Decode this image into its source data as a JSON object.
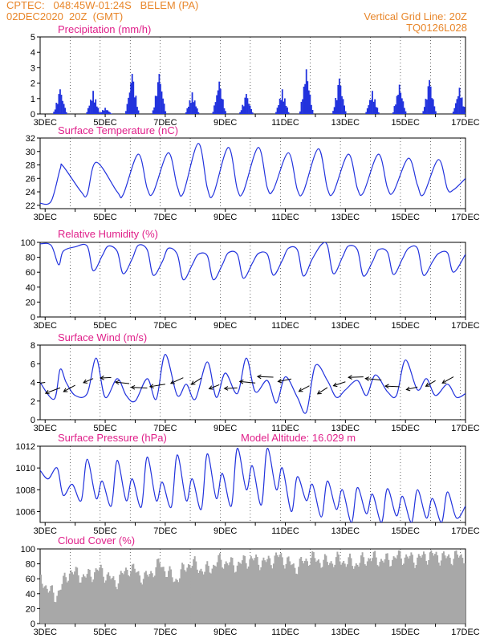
{
  "header": {
    "line1": "CPTEC:   048:45W-01:24S   BELEM (PA)",
    "line2": "02DEC2020  20Z  (GMT)",
    "right1": "Vertical Grid Line: 20Z",
    "right2": "TQ0126L028"
  },
  "colors": {
    "series": "#2233dd",
    "cloud": "#a8a8a8",
    "title": "#e0208a",
    "header": "#e8862a"
  },
  "chart_data": [
    {
      "type": "bar",
      "title": "Precipitation (mm/h)",
      "x_tick_labels": [
        "3DEC",
        "5DEC",
        "7DEC",
        "9DEC",
        "11DEC",
        "13DEC",
        "15DEC",
        "17DEC"
      ],
      "ylim": [
        0,
        5
      ],
      "y_ticks": [
        0,
        1,
        2,
        3,
        4,
        5
      ],
      "x_range_days": [
        2.8333,
        17
      ],
      "daily_peaks": [
        {
          "day": 3.5,
          "value": 1.6
        },
        {
          "day": 4.6,
          "value": 1.5
        },
        {
          "day": 5.0,
          "value": 0.4
        },
        {
          "day": 5.9,
          "value": 2.6
        },
        {
          "day": 6.8,
          "value": 2.6
        },
        {
          "day": 7.9,
          "value": 1.4
        },
        {
          "day": 8.8,
          "value": 2.1
        },
        {
          "day": 9.7,
          "value": 1.3
        },
        {
          "day": 10.9,
          "value": 1.6
        },
        {
          "day": 11.7,
          "value": 2.9
        },
        {
          "day": 12.8,
          "value": 2.3
        },
        {
          "day": 13.9,
          "value": 1.5
        },
        {
          "day": 14.8,
          "value": 1.9
        },
        {
          "day": 15.8,
          "value": 2.2
        },
        {
          "day": 16.8,
          "value": 1.7
        }
      ]
    },
    {
      "type": "line",
      "title": "Surface Temperature (nC)",
      "x_tick_labels": [
        "3DEC",
        "5DEC",
        "7DEC",
        "9DEC",
        "11DEC",
        "13DEC",
        "15DEC",
        "17DEC"
      ],
      "ylim": [
        21.5,
        32
      ],
      "y_ticks": [
        22,
        24,
        26,
        28,
        30,
        32
      ],
      "x": [
        2.83,
        3.2,
        3.5,
        3.6,
        4.2,
        4.4,
        4.7,
        5.4,
        5.6,
        6.1,
        6.4,
        6.6,
        7.1,
        7.4,
        7.6,
        8.1,
        8.4,
        8.6,
        9.1,
        9.4,
        9.6,
        10.1,
        10.4,
        10.6,
        11.1,
        11.4,
        11.6,
        12.1,
        12.4,
        12.6,
        13.1,
        13.4,
        13.6,
        14.1,
        14.4,
        14.6,
        15.1,
        15.4,
        15.6,
        16.1,
        16.4,
        16.6,
        17.0
      ],
      "values": [
        22.3,
        22.6,
        27.4,
        27.8,
        24.0,
        23.6,
        28.4,
        24.0,
        23.6,
        29.6,
        24.5,
        23.9,
        29.8,
        24.8,
        23.8,
        31.2,
        24.6,
        23.6,
        30.6,
        24.4,
        24.0,
        30.6,
        24.6,
        24.3,
        29.8,
        24.3,
        24.0,
        30.4,
        24.5,
        23.9,
        29.6,
        24.5,
        23.9,
        29.6,
        24.6,
        24.0,
        29.0,
        25.0,
        23.6,
        28.8,
        24.4,
        24.3,
        26.0
      ]
    },
    {
      "type": "line",
      "title": "Relative Humidity (%)",
      "x_tick_labels": [
        "3DEC",
        "5DEC",
        "7DEC",
        "9DEC",
        "11DEC",
        "13DEC",
        "15DEC",
        "17DEC"
      ],
      "ylim": [
        0,
        100
      ],
      "y_ticks": [
        0,
        20,
        40,
        60,
        80,
        100
      ],
      "x": [
        2.83,
        3.2,
        3.45,
        3.6,
        4.0,
        4.4,
        4.6,
        4.9,
        5.1,
        5.4,
        5.6,
        5.9,
        6.1,
        6.4,
        6.6,
        6.9,
        7.1,
        7.4,
        7.6,
        7.9,
        8.1,
        8.4,
        8.6,
        8.9,
        9.1,
        9.4,
        9.6,
        9.9,
        10.1,
        10.4,
        10.6,
        10.9,
        11.1,
        11.4,
        11.6,
        11.9,
        12.2,
        12.4,
        12.6,
        12.9,
        13.1,
        13.4,
        13.6,
        13.9,
        14.1,
        14.4,
        14.6,
        14.9,
        15.1,
        15.4,
        15.6,
        15.9,
        16.1,
        16.4,
        16.6,
        17.0
      ],
      "values": [
        98,
        96,
        70,
        88,
        94,
        95,
        62,
        82,
        95,
        88,
        58,
        78,
        96,
        90,
        56,
        74,
        92,
        84,
        50,
        70,
        84,
        82,
        50,
        70,
        86,
        84,
        52,
        72,
        85,
        84,
        56,
        76,
        92,
        90,
        55,
        78,
        97,
        96,
        58,
        80,
        95,
        90,
        55,
        74,
        90,
        87,
        57,
        78,
        92,
        92,
        56,
        74,
        85,
        86,
        60,
        84
      ]
    },
    {
      "type": "line",
      "title": "Surface Wind (m/s)",
      "x_tick_labels": [
        "3DEC",
        "5DEC",
        "7DEC",
        "9DEC",
        "11DEC",
        "13DEC",
        "15DEC",
        "17DEC"
      ],
      "ylim": [
        0,
        8
      ],
      "y_ticks": [
        0,
        2,
        4,
        6,
        8
      ],
      "x": [
        2.83,
        3.3,
        3.5,
        3.7,
        4.0,
        4.4,
        4.7,
        5.0,
        5.4,
        5.7,
        6.0,
        6.4,
        6.7,
        7.0,
        7.4,
        7.7,
        8.0,
        8.4,
        8.7,
        9.0,
        9.4,
        9.7,
        10.0,
        10.4,
        10.7,
        11.0,
        11.4,
        11.7,
        12.0,
        12.4,
        12.7,
        13.0,
        13.4,
        13.7,
        14.0,
        14.4,
        14.7,
        15.0,
        15.4,
        15.7,
        16.0,
        16.4,
        16.7,
        17.0
      ],
      "values": [
        4.0,
        2.2,
        5.4,
        4.0,
        2.6,
        2.8,
        6.6,
        2.4,
        4.4,
        2.6,
        2.0,
        4.4,
        2.2,
        7.0,
        2.6,
        3.8,
        2.2,
        6.2,
        2.4,
        5.0,
        2.8,
        6.6,
        3.0,
        4.2,
        1.8,
        4.6,
        2.4,
        0.8,
        5.8,
        4.2,
        2.4,
        3.2,
        4.2,
        2.6,
        4.8,
        3.0,
        2.6,
        6.4,
        3.2,
        4.4,
        2.6,
        3.8,
        2.4,
        2.8
      ],
      "vector_points_days": [
        3.0,
        3.5,
        4.0,
        4.6,
        5.2,
        5.8,
        6.4,
        7.0,
        7.6,
        8.2,
        8.8,
        9.4,
        10.0,
        10.6,
        11.2,
        11.8,
        12.4,
        13.0,
        13.6,
        14.2,
        14.8,
        15.4,
        16.0,
        16.6
      ]
    },
    {
      "type": "line",
      "title": "Surface Pressure (hPa)",
      "annotation": "Model Altitude: 16.029  m",
      "x_tick_labels": [
        "3DEC",
        "5DEC",
        "7DEC",
        "9DEC",
        "11DEC",
        "13DEC",
        "15DEC",
        "17DEC"
      ],
      "ylim": [
        1005,
        1012
      ],
      "y_ticks": [
        1006,
        1008,
        1010,
        1012
      ],
      "x": [
        2.83,
        3.1,
        3.4,
        3.6,
        3.9,
        4.2,
        4.4,
        4.7,
        4.9,
        5.2,
        5.4,
        5.7,
        5.9,
        6.2,
        6.4,
        6.7,
        6.9,
        7.2,
        7.4,
        7.7,
        7.9,
        8.2,
        8.4,
        8.7,
        8.9,
        9.2,
        9.4,
        9.7,
        9.9,
        10.2,
        10.4,
        10.7,
        10.9,
        11.2,
        11.4,
        11.7,
        11.9,
        12.2,
        12.4,
        12.7,
        12.9,
        13.2,
        13.4,
        13.7,
        13.9,
        14.2,
        14.4,
        14.7,
        14.9,
        15.2,
        15.4,
        15.7,
        15.9,
        16.2,
        16.4,
        16.7,
        17.0
      ],
      "values": [
        1009.8,
        1009.0,
        1010.0,
        1007.5,
        1008.5,
        1007.0,
        1010.8,
        1007.2,
        1008.8,
        1006.5,
        1010.7,
        1007.0,
        1009.0,
        1006.4,
        1011.0,
        1007.0,
        1008.7,
        1006.4,
        1011.2,
        1007.0,
        1009.0,
        1006.2,
        1011.3,
        1007.2,
        1009.5,
        1006.5,
        1011.8,
        1008.0,
        1010.2,
        1006.6,
        1011.8,
        1008.0,
        1010.0,
        1006.0,
        1009.2,
        1007.0,
        1008.5,
        1005.5,
        1008.8,
        1006.2,
        1008.0,
        1005.0,
        1008.2,
        1005.8,
        1007.6,
        1005.0,
        1008.1,
        1005.6,
        1007.4,
        1005.0,
        1008.0,
        1005.4,
        1007.2,
        1005.0,
        1007.8,
        1005.4,
        1006.5
      ]
    },
    {
      "type": "bar",
      "title": "Cloud Cover (%)",
      "x_tick_labels": [
        "3DEC",
        "5DEC",
        "7DEC",
        "9DEC",
        "11DEC",
        "13DEC",
        "15DEC",
        "17DEC"
      ],
      "ylim": [
        0,
        100
      ],
      "y_ticks": [
        0,
        20,
        40,
        60,
        80,
        100
      ],
      "x": [
        2.83,
        3.3,
        3.8,
        4.3,
        4.8,
        5.3,
        5.8,
        6.3,
        6.8,
        7.3,
        7.8,
        8.3,
        8.8,
        9.3,
        9.8,
        10.3,
        10.8,
        11.3,
        11.8,
        12.3,
        12.8,
        13.3,
        13.8,
        14.3,
        14.8,
        15.3,
        15.8,
        16.3,
        16.8
      ],
      "values": [
        60,
        35,
        70,
        62,
        72,
        55,
        75,
        60,
        80,
        58,
        82,
        70,
        84,
        78,
        86,
        82,
        90,
        75,
        88,
        82,
        85,
        80,
        88,
        84,
        90,
        86,
        92,
        88,
        90
      ]
    }
  ]
}
